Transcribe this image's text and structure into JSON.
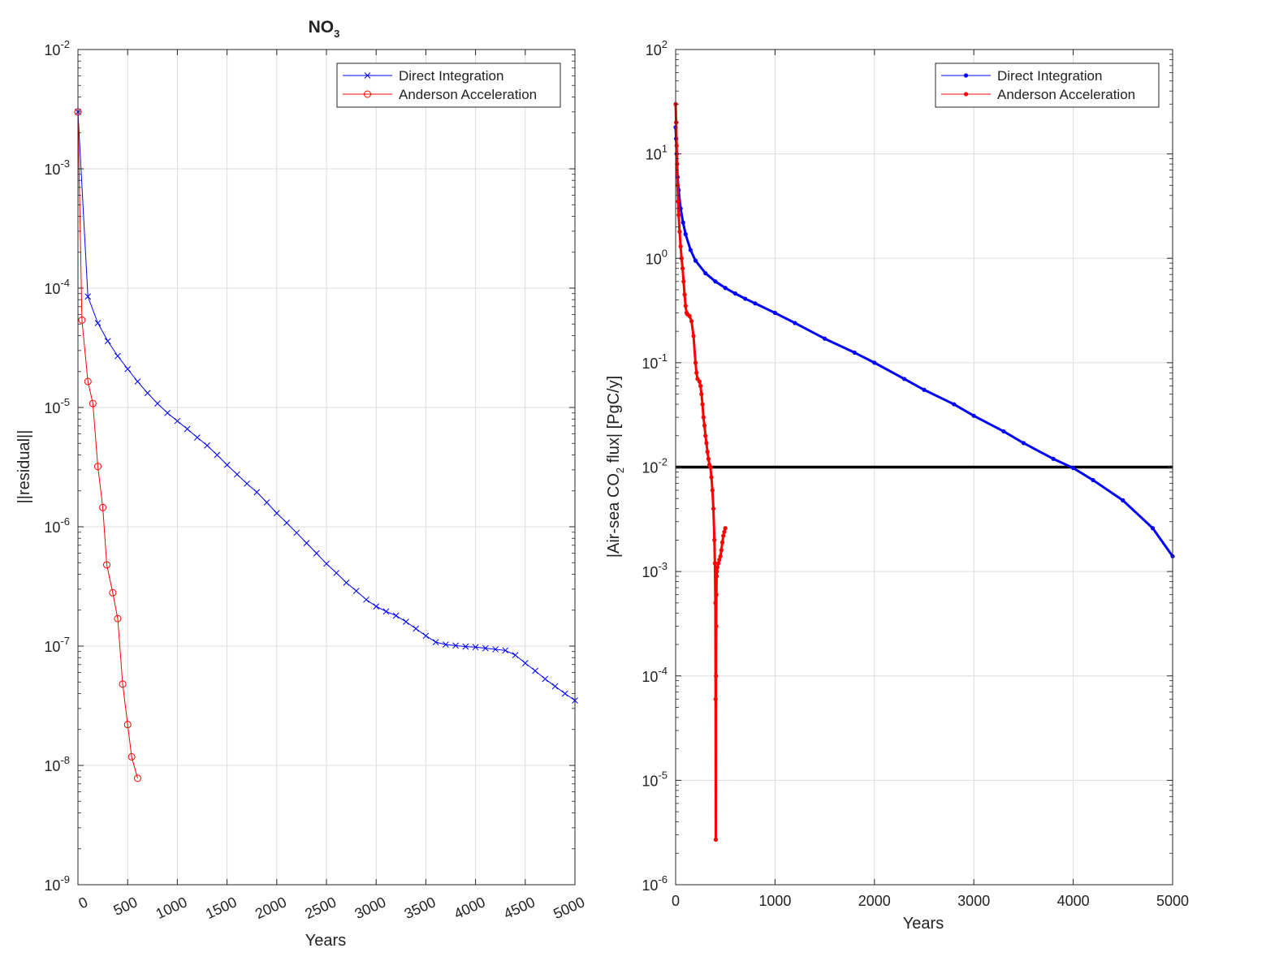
{
  "chart_data": [
    {
      "type": "line",
      "title": "NO",
      "title_subscript": "3",
      "xlabel": "Years",
      "ylabel": "||residual||",
      "xlim": [
        0,
        5000
      ],
      "ylim": [
        1e-09,
        0.01
      ],
      "yscale": "log",
      "grid": true,
      "legend_position": "top-right",
      "x_ticks": [
        "0",
        "500",
        "1000",
        "1500",
        "2000",
        "2500",
        "3000",
        "3500",
        "4000",
        "4500",
        "5000"
      ],
      "y_ticks": [
        {
          "base": "10",
          "exp": "-9"
        },
        {
          "base": "10",
          "exp": "-8"
        },
        {
          "base": "10",
          "exp": "-7"
        },
        {
          "base": "10",
          "exp": "-6"
        },
        {
          "base": "10",
          "exp": "-5"
        },
        {
          "base": "10",
          "exp": "-4"
        },
        {
          "base": "10",
          "exp": "-3"
        },
        {
          "base": "10",
          "exp": "-2"
        }
      ],
      "series": [
        {
          "name": "Direct Integration",
          "color": "#0000ff",
          "marker": "x",
          "x": [
            0,
            100,
            200,
            300,
            400,
            500,
            600,
            700,
            800,
            900,
            1000,
            1100,
            1200,
            1300,
            1400,
            1500,
            1600,
            1700,
            1800,
            1900,
            2000,
            2100,
            2200,
            2300,
            2400,
            2500,
            2600,
            2700,
            2800,
            2900,
            3000,
            3100,
            3200,
            3300,
            3400,
            3500,
            3600,
            3700,
            3800,
            3900,
            4000,
            4100,
            4200,
            4300,
            4400,
            4500,
            4600,
            4700,
            4800,
            4900,
            5000
          ],
          "y": [
            0.003,
            8.5e-05,
            5.1e-05,
            3.6e-05,
            2.7e-05,
            2.1e-05,
            1.65e-05,
            1.32e-05,
            1.08e-05,
            9e-06,
            7.7e-06,
            6.6e-06,
            5.6e-06,
            4.8e-06,
            4e-06,
            3.3e-06,
            2.75e-06,
            2.3e-06,
            1.95e-06,
            1.6e-06,
            1.3e-06,
            1.08e-06,
            8.9e-07,
            7.3e-07,
            6e-07,
            4.9e-07,
            4.1e-07,
            3.4e-07,
            2.9e-07,
            2.45e-07,
            2.15e-07,
            1.95e-07,
            1.8e-07,
            1.6e-07,
            1.4e-07,
            1.22e-07,
            1.08e-07,
            1.03e-07,
            1.01e-07,
            9.9e-08,
            9.8e-08,
            9.6e-08,
            9.4e-08,
            9.2e-08,
            8.4e-08,
            7.2e-08,
            6.2e-08,
            5.3e-08,
            4.6e-08,
            4e-08,
            3.5e-08
          ]
        },
        {
          "name": "Anderson Acceleration",
          "color": "#ff0000",
          "marker": "o",
          "x": [
            0,
            40,
            100,
            150,
            200,
            250,
            290,
            350,
            400,
            450,
            500,
            540,
            600
          ],
          "y": [
            0.003,
            5.4e-05,
            1.65e-05,
            1.08e-05,
            3.2e-06,
            1.45e-06,
            4.8e-07,
            2.8e-07,
            1.7e-07,
            4.8e-08,
            2.2e-08,
            1.18e-08,
            7.8e-09
          ]
        }
      ]
    },
    {
      "type": "line",
      "title": "",
      "xlabel": "Years",
      "ylabel": "|Air-sea CO2 flux| [PgC/y]",
      "ylabel_parts": {
        "pre": "|Air-sea CO",
        "sub": "2",
        "post": " flux| [PgC/y]"
      },
      "xlim": [
        0,
        5000
      ],
      "ylim": [
        1e-06,
        100
      ],
      "yscale": "log",
      "grid": true,
      "legend_position": "top-right",
      "x_ticks": [
        "0",
        "1000",
        "2000",
        "3000",
        "4000",
        "5000"
      ],
      "y_ticks": [
        {
          "base": "10",
          "exp": "-6"
        },
        {
          "base": "10",
          "exp": "-5"
        },
        {
          "base": "10",
          "exp": "-4"
        },
        {
          "base": "10",
          "exp": "-3"
        },
        {
          "base": "10",
          "exp": "-2"
        },
        {
          "base": "10",
          "exp": "-1"
        },
        {
          "base": "10",
          "exp": "0"
        },
        {
          "base": "10",
          "exp": "1"
        },
        {
          "base": "10",
          "exp": "2"
        }
      ],
      "reference_line": {
        "y": 0.01,
        "color": "#000000"
      },
      "series": [
        {
          "name": "Direct Integration",
          "color": "#0000ff",
          "marker": "point",
          "x": [
            0,
            5,
            10,
            20,
            30,
            50,
            75,
            100,
            150,
            200,
            300,
            400,
            500,
            600,
            700,
            800,
            1000,
            1200,
            1500,
            1800,
            2000,
            2300,
            2500,
            2800,
            3000,
            3300,
            3500,
            3800,
            4000,
            4200,
            4500,
            4800,
            5000
          ],
          "y": [
            18,
            14,
            10,
            6,
            4.5,
            3.0,
            2.2,
            1.7,
            1.2,
            0.95,
            0.72,
            0.6,
            0.52,
            0.46,
            0.41,
            0.37,
            0.3,
            0.24,
            0.17,
            0.125,
            0.1,
            0.07,
            0.055,
            0.04,
            0.031,
            0.022,
            0.017,
            0.012,
            0.0098,
            0.0075,
            0.0048,
            0.0026,
            0.0014
          ]
        },
        {
          "name": "Anderson Acceleration",
          "color": "#ff0000",
          "marker": "point",
          "x": [
            0,
            5,
            10,
            15,
            20,
            25,
            30,
            40,
            50,
            60,
            70,
            80,
            90,
            100,
            110,
            120,
            140,
            160,
            180,
            200,
            210,
            220,
            240,
            250,
            260,
            270,
            280,
            290,
            300,
            310,
            320,
            330,
            340,
            350,
            360,
            370,
            380,
            390,
            395,
            400,
            402,
            404,
            406,
            408,
            410,
            412,
            415,
            420,
            430,
            440,
            450,
            460,
            470,
            480,
            490,
            500
          ],
          "y": [
            30,
            20,
            12,
            8,
            5,
            3.5,
            2.6,
            1.8,
            1.3,
            1.0,
            0.8,
            0.6,
            0.45,
            0.35,
            0.3,
            0.29,
            0.28,
            0.25,
            0.18,
            0.1,
            0.08,
            0.07,
            0.066,
            0.06,
            0.05,
            0.04,
            0.03,
            0.025,
            0.02,
            0.017,
            0.014,
            0.012,
            0.0105,
            0.01,
            0.008,
            0.006,
            0.004,
            0.002,
            0.0012,
            0.0005,
            6e-05,
            2.7e-06,
            0.0001,
            0.0003,
            0.0006,
            0.0009,
            0.001,
            0.0011,
            0.0012,
            0.0013,
            0.0014,
            0.0016,
            0.0019,
            0.0022,
            0.0024,
            0.0026
          ]
        }
      ]
    }
  ]
}
